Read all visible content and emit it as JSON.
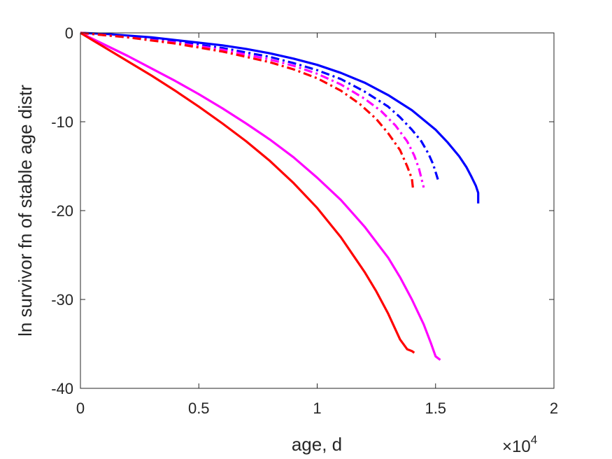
{
  "chart_data": {
    "type": "line",
    "xlabel": "age, d",
    "ylabel": "ln survivor fn of stable age distr",
    "x_multiplier": {
      "base": "×10",
      "exponent": "4"
    },
    "xlim": [
      0,
      20000
    ],
    "ylim": [
      -40,
      0
    ],
    "xticks": [
      0,
      5000,
      10000,
      15000,
      20000
    ],
    "xtick_labels": [
      "0",
      "0.5",
      "1",
      "1.5",
      "2"
    ],
    "yticks": [
      0,
      -10,
      -20,
      -30,
      -40
    ],
    "ytick_labels": [
      "0",
      "-10",
      "-20",
      "-30",
      "-40"
    ],
    "grid": false,
    "legend": "none",
    "series": [
      {
        "color": "#0000ff",
        "style": "solid",
        "x": [
          0,
          1000,
          2000,
          3000,
          4000,
          5000,
          6000,
          7000,
          8000,
          9000,
          10000,
          11000,
          12000,
          13000,
          14000,
          15000,
          15500,
          16000,
          16300,
          16500,
          16700,
          16800,
          16800
        ],
        "y": [
          0,
          -0.1,
          -0.3,
          -0.5,
          -0.8,
          -1.1,
          -1.4,
          -1.8,
          -2.3,
          -2.9,
          -3.6,
          -4.5,
          -5.6,
          -7.0,
          -8.7,
          -10.9,
          -12.3,
          -13.9,
          -15.1,
          -16.1,
          -17.2,
          -18.0,
          -19.2
        ]
      },
      {
        "color": "#0000ff",
        "style": "dashdot",
        "x": [
          0,
          2000,
          4000,
          6000,
          8000,
          9000,
          10000,
          11000,
          12000,
          13000,
          13500,
          14000,
          14400,
          14700,
          14900,
          15100
        ],
        "y": [
          0,
          -0.4,
          -1.0,
          -1.7,
          -2.7,
          -3.4,
          -4.2,
          -5.2,
          -6.6,
          -8.3,
          -9.5,
          -10.9,
          -12.2,
          -13.6,
          -14.8,
          -16.5
        ]
      },
      {
        "color": "#ff00ff",
        "style": "dashdot",
        "x": [
          0,
          2000,
          4000,
          6000,
          8000,
          9000,
          10000,
          11000,
          12000,
          12700,
          13300,
          13800,
          14100,
          14300,
          14500
        ],
        "y": [
          0,
          -0.5,
          -1.1,
          -1.9,
          -3.0,
          -3.7,
          -4.6,
          -5.8,
          -7.4,
          -8.8,
          -10.4,
          -12.2,
          -13.8,
          -15.3,
          -17.4
        ]
      },
      {
        "color": "#ff0000",
        "style": "dashdot",
        "x": [
          0,
          2000,
          4000,
          6000,
          8000,
          9000,
          10000,
          11000,
          11800,
          12500,
          13000,
          13500,
          13800,
          14000,
          14050
        ],
        "y": [
          0,
          -0.5,
          -1.2,
          -2.1,
          -3.3,
          -4.1,
          -5.1,
          -6.5,
          -8.0,
          -9.7,
          -11.3,
          -13.2,
          -15.0,
          -16.4,
          -17.6
        ]
      },
      {
        "color": "#ff00ff",
        "style": "solid",
        "x": [
          0,
          1000,
          2000,
          3000,
          4000,
          5000,
          6000,
          7000,
          8000,
          9000,
          10000,
          11000,
          12000,
          13000,
          13500,
          14000,
          14500,
          14800,
          15000,
          15200
        ],
        "y": [
          0,
          -1.3,
          -2.6,
          -4.0,
          -5.4,
          -6.9,
          -8.5,
          -10.2,
          -12.0,
          -14.0,
          -16.3,
          -18.8,
          -21.8,
          -25.3,
          -27.5,
          -30.0,
          -32.8,
          -34.9,
          -36.4,
          -36.8
        ]
      },
      {
        "color": "#ff0000",
        "style": "solid",
        "x": [
          0,
          1000,
          2000,
          3000,
          4000,
          5000,
          6000,
          7000,
          8000,
          9000,
          10000,
          11000,
          12000,
          12500,
          13000,
          13500,
          13800,
          14000,
          14100
        ],
        "y": [
          0,
          -1.6,
          -3.2,
          -4.8,
          -6.5,
          -8.3,
          -10.2,
          -12.2,
          -14.4,
          -16.9,
          -19.7,
          -23.0,
          -26.9,
          -29.1,
          -31.6,
          -34.5,
          -35.6,
          -35.8,
          -36.0
        ]
      }
    ]
  }
}
